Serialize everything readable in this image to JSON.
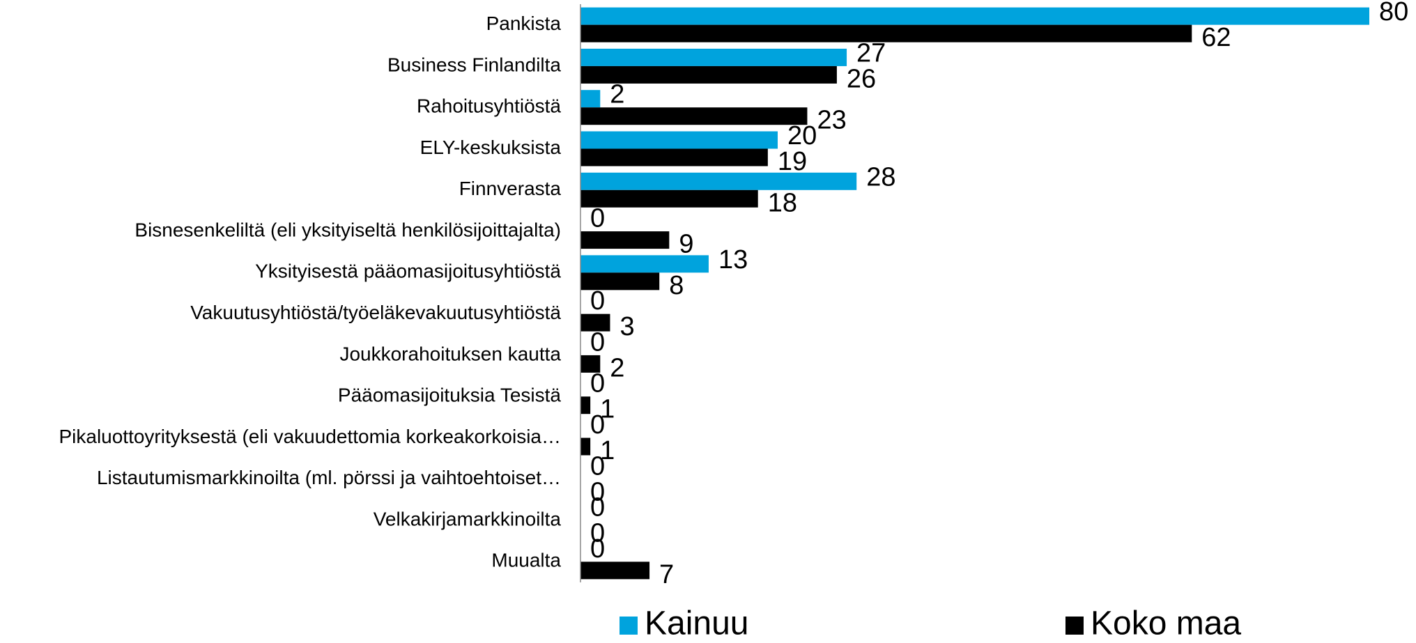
{
  "chart_data": {
    "type": "hbar",
    "categories": [
      "Pankista",
      "Business Finlandilta",
      "Rahoitusyhtiöstä",
      "ELY-keskuksista",
      "Finnverasta",
      "Bisnesenkeliltä (eli yksityiseltä henkilösijoittajalta)",
      "Yksityisestä pääomasijoitusyhtiöstä",
      "Vakuutusyhtiöstä/työeläkevakuutusyhtiöstä",
      "Joukkorahoituksen kautta",
      "Pääomasijoituksia Tesistä",
      "Pikaluottoyrityksestä (eli vakuudettomia korkeakorkoisia…",
      "Listautumismarkkinoilta (ml. pörssi ja vaihtoehtoiset…",
      "Velkakirjamarkkinoilta",
      "Muualta"
    ],
    "series": [
      {
        "name": "Kainuu",
        "color": "#00a3dd",
        "values": [
          80,
          27,
          2,
          20,
          28,
          0,
          13,
          0,
          0,
          0,
          0,
          0,
          0,
          0
        ]
      },
      {
        "name": "Koko maa",
        "color": "#000000",
        "values": [
          62,
          26,
          23,
          19,
          18,
          9,
          8,
          3,
          2,
          1,
          1,
          0,
          0,
          7
        ]
      }
    ],
    "xlim": [
      0,
      80
    ],
    "legend": "bottom"
  }
}
